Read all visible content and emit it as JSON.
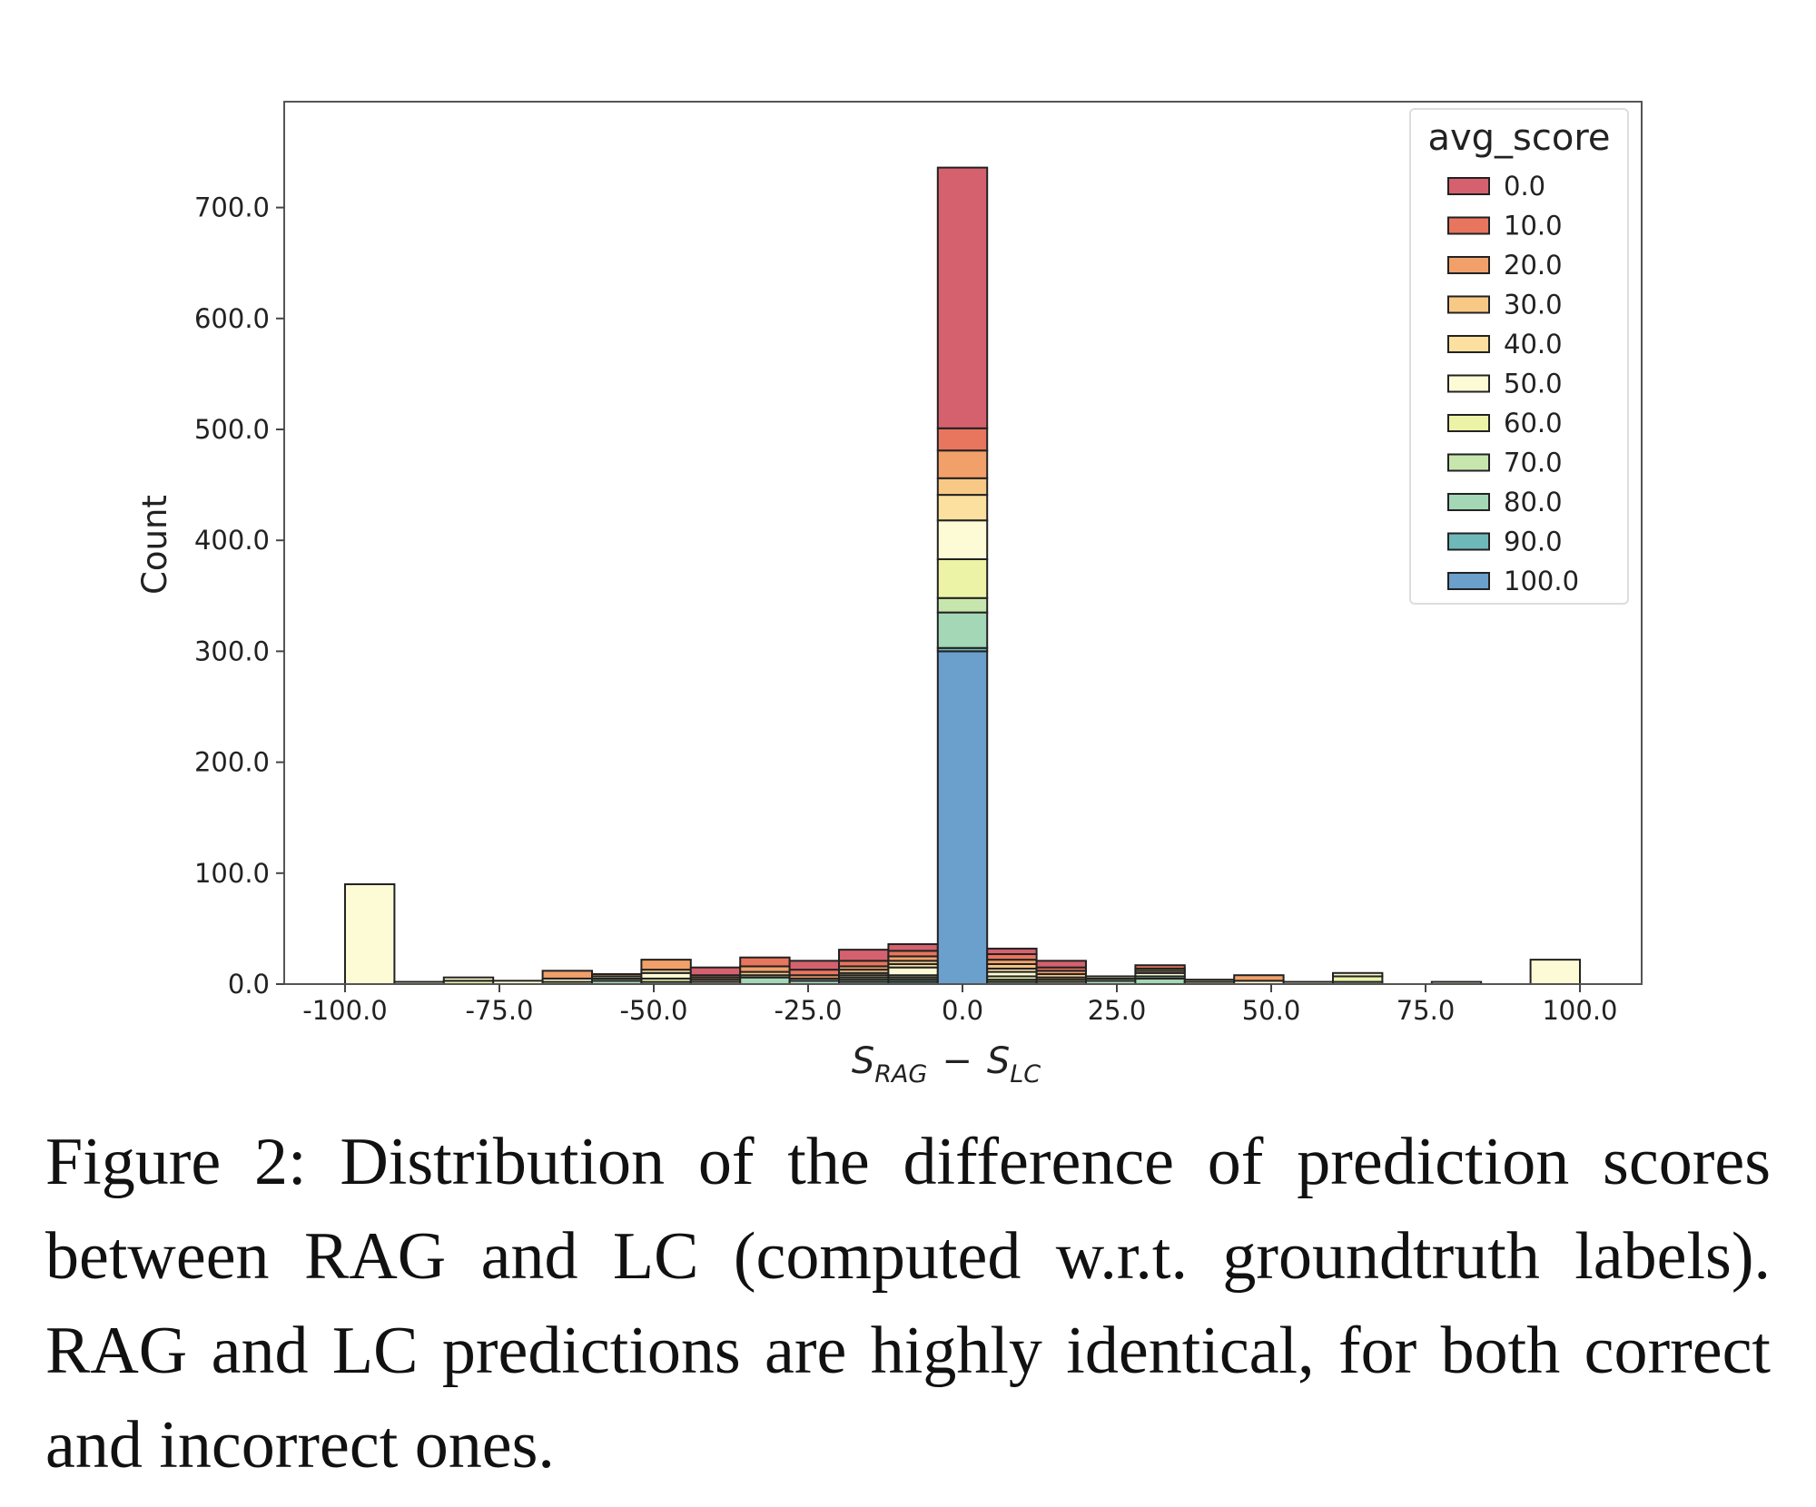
{
  "figure": {
    "caption": "Figure 2:  Distribution of the difference of predic­tion scores between RAG and LC (computed w.r.t. groundtruth labels). RAG and LC predictions are highly identical, for both correct and incorrect ones."
  },
  "chart_data": {
    "type": "bar",
    "stacked": true,
    "ylabel": "Count",
    "xlabel_main": "S",
    "xlabel_sub1": "RAG",
    "xlabel_minus": "−",
    "xlabel_sub2": "LC",
    "xlim": [
      -110,
      110
    ],
    "ylim": [
      0,
      800
    ],
    "xticks": [
      -100,
      -75,
      -50,
      -25,
      0,
      25,
      50,
      75,
      100
    ],
    "xtick_labels": [
      "-100.0",
      "-75.0",
      "-50.0",
      "-25.0",
      "0.0",
      "25.0",
      "50.0",
      "75.0",
      "100.0"
    ],
    "yticks": [
      0,
      100,
      200,
      300,
      400,
      500,
      600,
      700
    ],
    "ytick_labels": [
      "0.0",
      "100.0",
      "200.0",
      "300.0",
      "400.0",
      "500.0",
      "600.0",
      "700.0"
    ],
    "bin_width": 8,
    "legend": {
      "title": "avg_score",
      "placement": "top-right",
      "labels": [
        "0.0",
        "10.0",
        "20.0",
        "30.0",
        "40.0",
        "50.0",
        "60.0",
        "70.0",
        "80.0",
        "90.0",
        "100.0"
      ]
    },
    "colors": [
      "#d5616f",
      "#e8755e",
      "#f2a06a",
      "#f8c985",
      "#fbe09f",
      "#fdfbd5",
      "#ecf3a6",
      "#c7e6ae",
      "#a3d7b6",
      "#6fb8ba",
      "#6b9fcc"
    ],
    "bins": [
      {
        "x": -96,
        "values": [
          0,
          0,
          0,
          0,
          0,
          90,
          0,
          0,
          0,
          0,
          0
        ]
      },
      {
        "x": -88,
        "values": [
          0,
          0,
          0,
          0,
          0,
          2,
          0,
          0,
          0,
          0,
          0
        ]
      },
      {
        "x": -80,
        "values": [
          0,
          0,
          0,
          0,
          0,
          3,
          3,
          0,
          0,
          0,
          0
        ]
      },
      {
        "x": -72,
        "values": [
          0,
          0,
          0,
          0,
          0,
          3,
          0,
          0,
          0,
          0,
          0
        ]
      },
      {
        "x": -64,
        "values": [
          0,
          0,
          7,
          0,
          0,
          3,
          2,
          0,
          0,
          0,
          0
        ]
      },
      {
        "x": -56,
        "values": [
          0,
          0,
          2,
          0,
          0,
          2,
          2,
          0,
          3,
          0,
          0
        ]
      },
      {
        "x": -48,
        "values": [
          0,
          0,
          9,
          0,
          3,
          5,
          3,
          0,
          2,
          0,
          0
        ]
      },
      {
        "x": -40,
        "values": [
          7,
          0,
          2,
          2,
          0,
          2,
          2,
          0,
          0,
          0,
          0
        ]
      },
      {
        "x": -32,
        "values": [
          0,
          8,
          5,
          3,
          0,
          2,
          0,
          0,
          6,
          0,
          0
        ]
      },
      {
        "x": -24,
        "values": [
          8,
          5,
          3,
          0,
          0,
          2,
          0,
          0,
          3,
          0,
          0
        ]
      },
      {
        "x": -16,
        "values": [
          10,
          5,
          3,
          3,
          2,
          2,
          2,
          2,
          2,
          0,
          0
        ]
      },
      {
        "x": -8,
        "values": [
          6,
          5,
          4,
          3,
          3,
          7,
          2,
          2,
          2,
          2,
          0
        ]
      },
      {
        "x": 0,
        "values": [
          235,
          20,
          25,
          15,
          23,
          35,
          35,
          13,
          32,
          3,
          300
        ]
      },
      {
        "x": 8,
        "values": [
          5,
          5,
          4,
          4,
          3,
          4,
          3,
          2,
          2,
          0,
          0
        ]
      },
      {
        "x": 16,
        "values": [
          6,
          3,
          3,
          3,
          2,
          2,
          2,
          0,
          0,
          0,
          0
        ]
      },
      {
        "x": 24,
        "values": [
          0,
          0,
          0,
          0,
          0,
          2,
          2,
          0,
          3,
          0,
          0
        ]
      },
      {
        "x": 32,
        "values": [
          0,
          3,
          0,
          2,
          2,
          3,
          0,
          2,
          5,
          0,
          0
        ]
      },
      {
        "x": 40,
        "values": [
          0,
          0,
          0,
          0,
          2,
          2,
          0,
          0,
          0,
          0,
          0
        ]
      },
      {
        "x": 48,
        "values": [
          0,
          0,
          5,
          0,
          0,
          3,
          0,
          0,
          0,
          0,
          0
        ]
      },
      {
        "x": 56,
        "values": [
          0,
          0,
          0,
          0,
          0,
          2,
          0,
          0,
          0,
          0,
          0
        ]
      },
      {
        "x": 64,
        "values": [
          0,
          0,
          0,
          0,
          0,
          3,
          5,
          0,
          2,
          0,
          0
        ]
      },
      {
        "x": 80,
        "values": [
          0,
          0,
          0,
          0,
          0,
          2,
          0,
          0,
          0,
          0,
          0
        ]
      },
      {
        "x": 96,
        "values": [
          0,
          0,
          0,
          0,
          0,
          22,
          0,
          0,
          0,
          0,
          0
        ]
      }
    ]
  }
}
